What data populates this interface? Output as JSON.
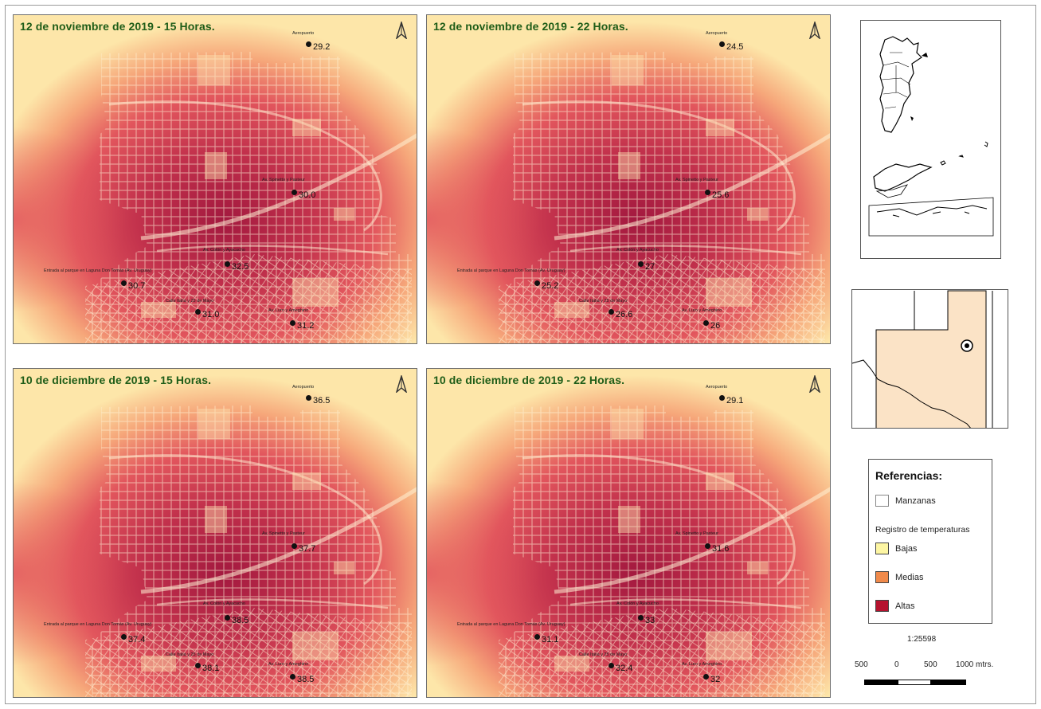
{
  "panels": [
    {
      "title": "12 de noviembre de 2019 - 15 Horas.",
      "stations": [
        {
          "name": "Aeropuerto",
          "value": "29.2"
        },
        {
          "name": "Av. Spinetto y Pasteur",
          "value": "30.0"
        },
        {
          "name": "Av. Colón y Ayacucho",
          "value": "32.5"
        },
        {
          "name": "Entrada al parque en Laguna Don Tomás (Av. Uruguay)",
          "value": "30.7"
        },
        {
          "name": "Calle Italia y 25 de Mayo",
          "value": "31.0"
        },
        {
          "name": "Av. Luro y Ameghino",
          "value": "31.2"
        }
      ]
    },
    {
      "title": "12 de noviembre de 2019 - 22 Horas.",
      "stations": [
        {
          "name": "Aeropuerto",
          "value": "24.5"
        },
        {
          "name": "Av. Spinetto y Pasteur",
          "value": "25.6"
        },
        {
          "name": "Av. Colón y Ayacucho",
          "value": "27"
        },
        {
          "name": "Entrada al parque en Laguna Don Tomás (Av. Uruguay)",
          "value": "25.2"
        },
        {
          "name": "Calle Italia y 25 de Mayo",
          "value": "26.6"
        },
        {
          "name": "Av. Luro y Ameghino",
          "value": "26"
        }
      ]
    },
    {
      "title": "10 de diciembre de 2019 - 15 Horas.",
      "stations": [
        {
          "name": "Aeropuerto",
          "value": "36.5"
        },
        {
          "name": "Av. Spinetto y Pasteur",
          "value": "37.7"
        },
        {
          "name": "Av. Colón y Ayacucho",
          "value": "38.5"
        },
        {
          "name": "Entrada al parque en Laguna Don Tomás (Av. Uruguay)",
          "value": "37.4"
        },
        {
          "name": "Calle Italia y 25 de Mayo",
          "value": "38.1"
        },
        {
          "name": "Av. Luro y Ameghino",
          "value": "38.5"
        }
      ]
    },
    {
      "title": "10 de diciembre de 2019 - 22 Horas.",
      "stations": [
        {
          "name": "Aeropuerto",
          "value": "29.1"
        },
        {
          "name": "Av. Spinetto y Pasteur",
          "value": "31.6"
        },
        {
          "name": "Av. Colón y Ayacucho",
          "value": "33"
        },
        {
          "name": "Entrada al parque en Laguna Don Tomás (Av. Uruguay)",
          "value": "31.1"
        },
        {
          "name": "Calle Italia y 25 de Mayo",
          "value": "32.4"
        },
        {
          "name": "Av. Luro y Ameghino",
          "value": "32"
        }
      ]
    }
  ],
  "legend": {
    "title": "Referencias:",
    "manzanas": "Manzanas",
    "subtitle": "Registro de temperaturas",
    "classes": [
      {
        "label": "Bajas",
        "color": "#fdf6a3"
      },
      {
        "label": "Medias",
        "color": "#f08a4b"
      },
      {
        "label": "Altas",
        "color": "#b5122e"
      }
    ]
  },
  "scale": {
    "ratio": "1:25598",
    "ticks": [
      "500",
      "0",
      "500",
      "1000 mtrs."
    ]
  },
  "colors": {
    "hot": "#a3193f",
    "warm": "#e2565d",
    "cool": "#fde6a9",
    "title_green": "#1f5d18",
    "province_fill": "#fbe3c6"
  },
  "icons": {
    "north_arrow": "north-arrow-icon",
    "location": "location-marker-icon"
  }
}
